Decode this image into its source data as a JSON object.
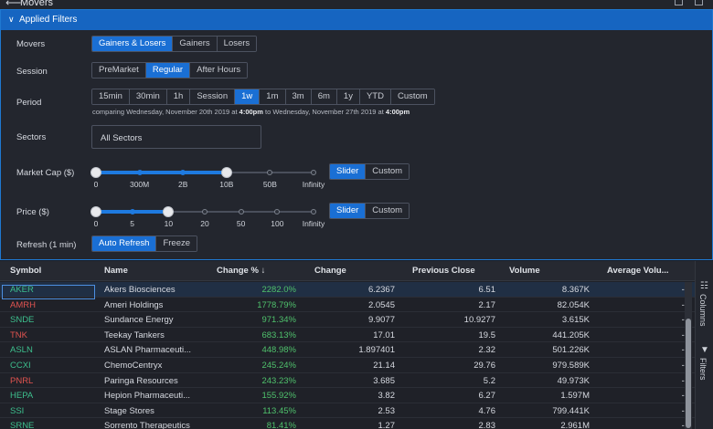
{
  "window": {
    "title": "Movers"
  },
  "filters": {
    "header": "Applied Filters",
    "movers": {
      "label": "Movers",
      "options": [
        "Gainers & Losers",
        "Gainers",
        "Losers"
      ],
      "selected": "Gainers & Losers"
    },
    "session": {
      "label": "Session",
      "options": [
        "PreMarket",
        "Regular",
        "After Hours"
      ],
      "selected": "Regular"
    },
    "period": {
      "label": "Period",
      "options": [
        "15min",
        "30min",
        "1h",
        "Session",
        "1w",
        "1m",
        "3m",
        "6m",
        "1y",
        "YTD",
        "Custom"
      ],
      "selected": "1w",
      "hint_prefix": "comparing Wednesday, November 20th 2019 at ",
      "hint_time1": "4:00pm",
      "hint_mid": " to Wednesday, November 27th 2019 at ",
      "hint_time2": "4:00pm"
    },
    "sectors": {
      "label": "Sectors",
      "value": "All Sectors"
    },
    "market_cap": {
      "label": "Market Cap ($)",
      "ticks": [
        "0",
        "300M",
        "2B",
        "10B",
        "50B",
        "Infinity"
      ],
      "range_low": "0",
      "range_high": "10B",
      "modes": [
        "Slider",
        "Custom"
      ],
      "mode_selected": "Slider"
    },
    "price": {
      "label": "Price ($)",
      "ticks": [
        "0",
        "5",
        "10",
        "20",
        "50",
        "100",
        "Infinity"
      ],
      "range_low": "0",
      "range_high": "10",
      "modes": [
        "Slider",
        "Custom"
      ],
      "mode_selected": "Slider"
    },
    "refresh": {
      "label": "Refresh (1 min)",
      "options": [
        "Auto Refresh",
        "Freeze"
      ],
      "selected": "Auto Refresh"
    }
  },
  "grid": {
    "columns": [
      "Symbol",
      "Name",
      "Change %",
      "Change",
      "Previous Close",
      "Volume",
      "Average Volu..."
    ],
    "sort_indicator": "↓",
    "rows": [
      {
        "symbol": "AKER",
        "name": "Akers Biosciences",
        "change_pct": "2282.0%",
        "change": "6.2367",
        "prev_close": "6.51",
        "volume": "8.367K",
        "avg_volume": "--",
        "dir": "green"
      },
      {
        "symbol": "AMRH",
        "name": "Ameri Holdings",
        "change_pct": "1778.79%",
        "change": "2.0545",
        "prev_close": "2.17",
        "volume": "82.054K",
        "avg_volume": "--",
        "dir": "red"
      },
      {
        "symbol": "SNDE",
        "name": "Sundance Energy",
        "change_pct": "971.34%",
        "change": "9.9077",
        "prev_close": "10.9277",
        "volume": "3.615K",
        "avg_volume": "--",
        "dir": "green"
      },
      {
        "symbol": "TNK",
        "name": "Teekay Tankers",
        "change_pct": "683.13%",
        "change": "17.01",
        "prev_close": "19.5",
        "volume": "441.205K",
        "avg_volume": "--",
        "dir": "red"
      },
      {
        "symbol": "ASLN",
        "name": "ASLAN Pharmaceuti...",
        "change_pct": "448.98%",
        "change": "1.897401",
        "prev_close": "2.32",
        "volume": "501.226K",
        "avg_volume": "--",
        "dir": "green"
      },
      {
        "symbol": "CCXI",
        "name": "ChemoCentryx",
        "change_pct": "245.24%",
        "change": "21.14",
        "prev_close": "29.76",
        "volume": "979.589K",
        "avg_volume": "--",
        "dir": "green"
      },
      {
        "symbol": "PNRL",
        "name": "Paringa Resources",
        "change_pct": "243.23%",
        "change": "3.685",
        "prev_close": "5.2",
        "volume": "49.973K",
        "avg_volume": "--",
        "dir": "red"
      },
      {
        "symbol": "HEPA",
        "name": "Hepion Pharmaceuti...",
        "change_pct": "155.92%",
        "change": "3.82",
        "prev_close": "6.27",
        "volume": "1.597M",
        "avg_volume": "--",
        "dir": "green"
      },
      {
        "symbol": "SSI",
        "name": "Stage Stores",
        "change_pct": "113.45%",
        "change": "2.53",
        "prev_close": "4.76",
        "volume": "799.441K",
        "avg_volume": "--",
        "dir": "green"
      },
      {
        "symbol": "SRNE",
        "name": "Sorrento Therapeutics",
        "change_pct": "81.41%",
        "change": "1.27",
        "prev_close": "2.83",
        "volume": "2.961M",
        "avg_volume": "--",
        "dir": "green"
      }
    ]
  },
  "side_panel": {
    "columns_label": "Columns",
    "filters_label": "Filters"
  },
  "colors": {
    "accent": "#1a6fd4",
    "positive": "#4fc16c",
    "negative": "#e0534f"
  }
}
